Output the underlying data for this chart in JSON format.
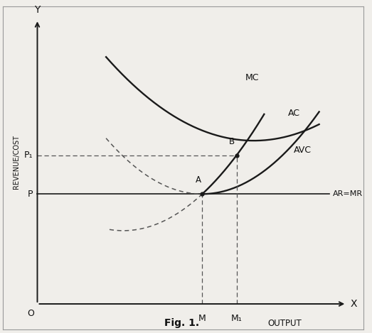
{
  "title": "Fig. 1.",
  "xlabel": "OUTPUT",
  "ylabel": "REVENUE/COST",
  "x_label_axis": "X",
  "y_label_axis": "Y",
  "origin_label": "O",
  "ar_mr_label": "AR=MR",
  "mc_label": "MC",
  "ac_label": "AC",
  "avc_label": "AVC",
  "point_a_label": "A",
  "point_b_label": "B",
  "p_label": "P",
  "p1_label": "P₁",
  "m_label": "M",
  "m1_label": "M₁",
  "ar_mr_y": 4.2,
  "p1_y": 5.4,
  "m_x": 5.8,
  "m1_x": 6.8,
  "background_color": "#f0eeea",
  "curve_color": "#1a1a1a",
  "dashed_color": "#555555",
  "text_color": "#111111",
  "fig_width": 5.23,
  "fig_height": 4.69,
  "xlim": [
    0,
    10.5
  ],
  "ylim": [
    0,
    10.0
  ],
  "ax_origin_x": 1.0,
  "ax_origin_y": 0.8
}
